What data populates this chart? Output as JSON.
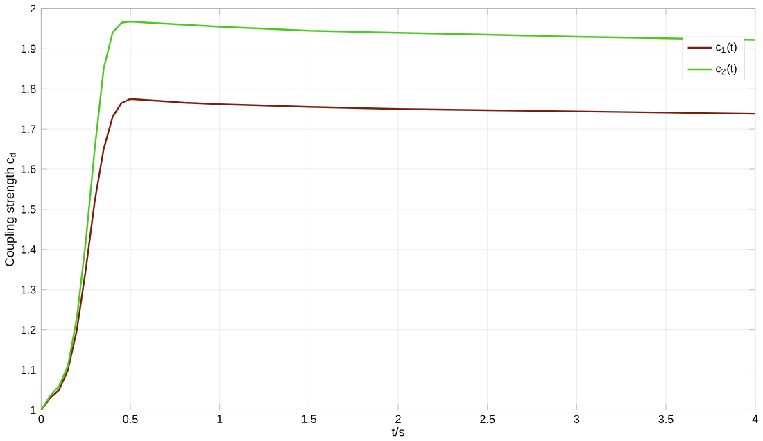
{
  "chart_data": {
    "type": "line",
    "xlabel": "t/s",
    "ylabel": "Coupling strength c$_{d}$",
    "xlim": [
      0,
      4
    ],
    "ylim": [
      1,
      2
    ],
    "xticks": [
      0,
      0.5,
      1,
      1.5,
      2,
      2.5,
      3,
      3.5,
      4
    ],
    "yticks": [
      1,
      1.1,
      1.2,
      1.3,
      1.4,
      1.5,
      1.6,
      1.7,
      1.8,
      1.9,
      2
    ],
    "grid": true,
    "legend": "top right",
    "line_style": "solid",
    "series": [
      {
        "name": "c$_{1}$(t)",
        "color": "#7a1f0c",
        "x": [
          0,
          0.05,
          0.1,
          0.15,
          0.2,
          0.25,
          0.3,
          0.35,
          0.4,
          0.45,
          0.5,
          0.6,
          0.8,
          1,
          1.5,
          2,
          2.5,
          3,
          3.5,
          4
        ],
        "values": [
          1.0,
          1.03,
          1.05,
          1.1,
          1.2,
          1.35,
          1.52,
          1.65,
          1.73,
          1.765,
          1.775,
          1.772,
          1.766,
          1.762,
          1.755,
          1.75,
          1.747,
          1.744,
          1.741,
          1.738
        ]
      },
      {
        "name": "c$_{2}$(t)",
        "color": "#4cc81e",
        "x": [
          0,
          0.05,
          0.1,
          0.15,
          0.2,
          0.25,
          0.3,
          0.35,
          0.4,
          0.45,
          0.5,
          0.6,
          0.8,
          1,
          1.5,
          2,
          2.5,
          3,
          3.5,
          4
        ],
        "values": [
          1.0,
          1.035,
          1.06,
          1.11,
          1.23,
          1.42,
          1.65,
          1.85,
          1.94,
          1.965,
          1.968,
          1.965,
          1.96,
          1.955,
          1.945,
          1.94,
          1.935,
          1.93,
          1.926,
          1.922
        ]
      }
    ]
  }
}
